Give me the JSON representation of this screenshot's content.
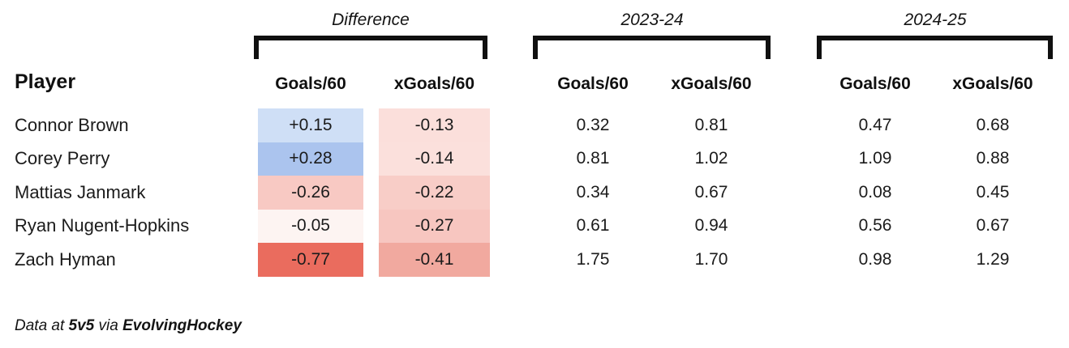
{
  "groups": {
    "difference": "Difference",
    "season1": "2023-24",
    "season2": "2024-25"
  },
  "columns": {
    "player": "Player",
    "goals": "Goals/60",
    "xgoals": "xGoals/60"
  },
  "rows": [
    {
      "player": "Connor Brown",
      "diff": {
        "goals": "+0.15",
        "goals_bg": "#cfdff6",
        "xgoals": "-0.13",
        "xgoals_bg": "#fbdfdb"
      },
      "s2324": {
        "goals": "0.32",
        "xgoals": "0.81"
      },
      "s2425": {
        "goals": "0.47",
        "xgoals": "0.68"
      }
    },
    {
      "player": "Corey Perry",
      "diff": {
        "goals": "+0.28",
        "goals_bg": "#abc4ee",
        "xgoals": "-0.14",
        "xgoals_bg": "#fbe0dc"
      },
      "s2324": {
        "goals": "0.81",
        "xgoals": "1.02"
      },
      "s2425": {
        "goals": "1.09",
        "xgoals": "0.88"
      }
    },
    {
      "player": "Mattias Janmark",
      "diff": {
        "goals": "-0.26",
        "goals_bg": "#f8c9c3",
        "xgoals": "-0.22",
        "xgoals_bg": "#f8cdc7"
      },
      "s2324": {
        "goals": "0.34",
        "xgoals": "0.67"
      },
      "s2425": {
        "goals": "0.08",
        "xgoals": "0.45"
      }
    },
    {
      "player": "Ryan Nugent-Hopkins",
      "diff": {
        "goals": "-0.05",
        "goals_bg": "#fdf4f2",
        "xgoals": "-0.27",
        "xgoals_bg": "#f7c6c0"
      },
      "s2324": {
        "goals": "0.61",
        "xgoals": "0.94"
      },
      "s2425": {
        "goals": "0.56",
        "xgoals": "0.67"
      }
    },
    {
      "player": "Zach Hyman",
      "diff": {
        "goals": "-0.77",
        "goals_bg": "#ea6c5e",
        "xgoals": "-0.41",
        "xgoals_bg": "#f1a99f"
      },
      "s2324": {
        "goals": "1.75",
        "xgoals": "1.70"
      },
      "s2425": {
        "goals": "0.98",
        "xgoals": "1.29"
      }
    }
  ],
  "footer": {
    "prefix": "Data at",
    "strength": "5v5",
    "via": "via",
    "source": "EvolvingHockey"
  },
  "colors": {
    "positive_strong": "#abc4ee",
    "positive_light": "#cfdff6",
    "negative_strong": "#ea6c5e",
    "negative_light": "#fdf4f2",
    "text": "#1b1b1b",
    "bracket": "#101010"
  },
  "chart_data": {
    "type": "table",
    "title": "",
    "column_groups": [
      "Difference",
      "2023-24",
      "2024-25"
    ],
    "columns": [
      "Player",
      "Difference Goals/60",
      "Difference xGoals/60",
      "2023-24 Goals/60",
      "2023-24 xGoals/60",
      "2024-25 Goals/60",
      "2024-25 xGoals/60"
    ],
    "rows": [
      [
        "Connor Brown",
        0.15,
        -0.13,
        0.32,
        0.81,
        0.47,
        0.68
      ],
      [
        "Corey Perry",
        0.28,
        -0.14,
        0.81,
        1.02,
        1.09,
        0.88
      ],
      [
        "Mattias Janmark",
        -0.26,
        -0.22,
        0.34,
        0.67,
        0.08,
        0.45
      ],
      [
        "Ryan Nugent-Hopkins",
        -0.05,
        -0.27,
        0.61,
        0.94,
        0.56,
        0.67
      ],
      [
        "Zach Hyman",
        -0.77,
        -0.41,
        1.75,
        1.7,
        0.98,
        1.29
      ]
    ],
    "cell_shading": "Difference columns shaded blue for positive values, red for negative; intensity scales with magnitude",
    "note": "Data at 5v5 via EvolvingHockey"
  }
}
